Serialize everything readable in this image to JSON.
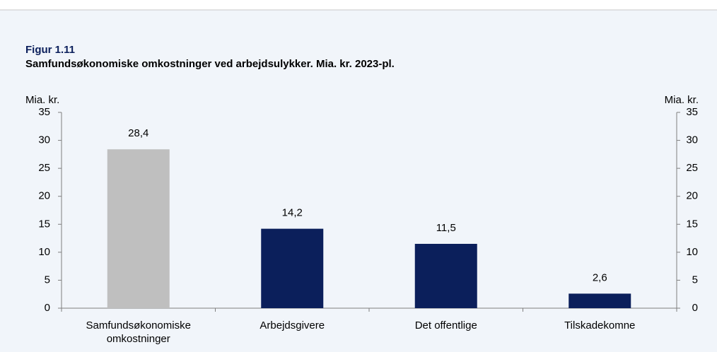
{
  "chart_data": {
    "type": "bar",
    "figure_label": "Figur 1.11",
    "title": "Samfundsøkonomiske omkostninger ved arbejdsulykker. Mia. kr. 2023-pl.",
    "y_label": "Mia. kr.",
    "y2_label": "Mia. kr.",
    "categories": [
      "Samfundsøkonomiske omkostninger",
      "Arbejdsgivere",
      "Det offentlige",
      "Tilskadekomne"
    ],
    "values": [
      28.4,
      14.2,
      11.5,
      2.6
    ],
    "value_labels": [
      "28,4",
      "14,2",
      "11,5",
      "2,6"
    ],
    "colors": [
      "#bfbfbf",
      "#0b1f5b",
      "#0b1f5b",
      "#0b1f5b"
    ],
    "ylim": [
      0,
      35
    ],
    "yticks": [
      0,
      5,
      10,
      15,
      20,
      25,
      30,
      35
    ],
    "y2lim": [
      0,
      35
    ],
    "y2ticks": [
      0,
      5,
      10,
      15,
      20,
      25,
      30,
      35
    ],
    "grid": false
  }
}
